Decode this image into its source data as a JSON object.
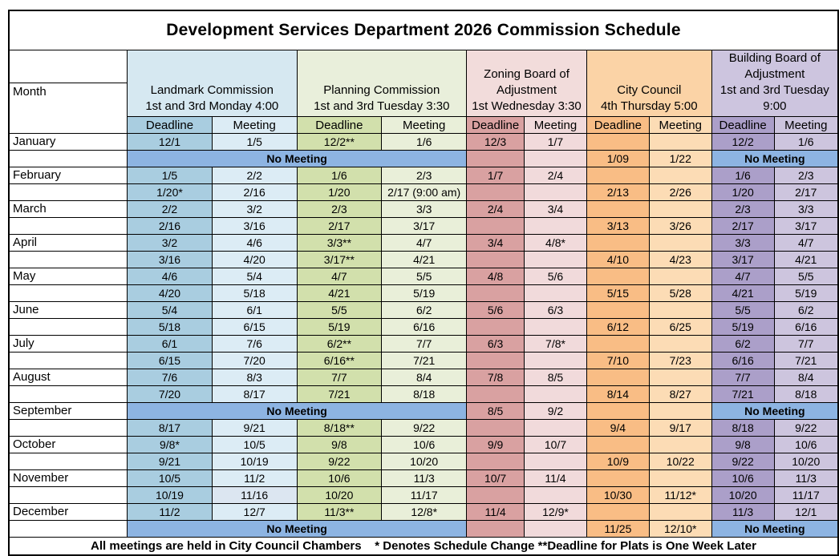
{
  "title": "Development Services Department 2026 Commission Schedule",
  "footer": "All meetings are held in City Council Chambers    * Denotes Schedule Change **Deadline for Plats is One Week Later",
  "no_meeting_label": "No Meeting",
  "columns": {
    "month_label": "Month",
    "groups": [
      {
        "name": "Landmark Commission",
        "schedule": "1st and 3rd Monday 4:00",
        "deadline_label": "Deadline",
        "meeting_label": "Meeting"
      },
      {
        "name": "Planning Commission",
        "schedule": "1st and 3rd Tuesday 3:30",
        "deadline_label": "Deadline",
        "meeting_label": "Meeting"
      },
      {
        "name": "Zoning Board of Adjustment",
        "schedule": "1st Wednesday 3:30",
        "deadline_label": "Deadline",
        "meeting_label": "Meeting"
      },
      {
        "name": "City Council",
        "schedule": "4th Thursday 5:00",
        "deadline_label": "Deadline",
        "meeting_label": "Meeting"
      },
      {
        "name": "Building Board of Adjustment",
        "schedule": "1st and 3rd Tuesday 9:00",
        "deadline_label": "Deadline",
        "meeting_label": "Meeting"
      }
    ]
  },
  "palette": {
    "lg": "#d6e8f1",
    "ld": "#a9cde0",
    "lm": "#dcecf5",
    "pg": "#e9efdb",
    "pd": "#d2e0ac",
    "pm": "#e9efd9",
    "zg": "#f2dcdb",
    "zd": "#d9a1a1",
    "zm": "#f1dadb",
    "cg": "#fbd3a6",
    "cd": "#f9bd85",
    "cm": "#fcdcb5",
    "bg": "#cdc5df",
    "bd": "#ab9fc9",
    "bm": "#cdc5de",
    "no_meeting": "#8db4e2",
    "november_highlight": "#dce6f1"
  },
  "rows": [
    {
      "month": "January",
      "cells": [
        {
          "col": "ld",
          "text": "12/1"
        },
        {
          "col": "lm",
          "text": "1/5"
        },
        {
          "col": "pd",
          "text": "12/2**"
        },
        {
          "col": "pm",
          "text": "1/6"
        },
        {
          "col": "zd",
          "text": "12/3"
        },
        {
          "col": "zm",
          "text": "1/7"
        },
        {
          "col": "cd",
          "text": ""
        },
        {
          "col": "cm",
          "text": ""
        },
        {
          "col": "bd",
          "text": "12/2"
        },
        {
          "col": "bm",
          "text": "1/6"
        }
      ]
    },
    {
      "month": "",
      "cells": [
        {
          "no_meeting": true,
          "span": 4
        },
        {
          "col": "zd",
          "text": ""
        },
        {
          "col": "zm",
          "text": ""
        },
        {
          "col": "cd",
          "text": "1/09"
        },
        {
          "col": "cm",
          "text": "1/22"
        },
        {
          "no_meeting": true,
          "span": 2
        }
      ]
    },
    {
      "month": "February",
      "cells": [
        {
          "col": "ld",
          "text": "1/5"
        },
        {
          "col": "lm",
          "text": "2/2"
        },
        {
          "col": "pd",
          "text": "1/6"
        },
        {
          "col": "pm",
          "text": "2/3"
        },
        {
          "col": "zd",
          "text": "1/7"
        },
        {
          "col": "zm",
          "text": "2/4"
        },
        {
          "col": "cd",
          "text": ""
        },
        {
          "col": "cm",
          "text": ""
        },
        {
          "col": "bd",
          "text": "1/6"
        },
        {
          "col": "bm",
          "text": "2/3"
        }
      ]
    },
    {
      "month": "",
      "cells": [
        {
          "col": "ld",
          "text": "1/20*"
        },
        {
          "col": "lm",
          "text": "2/16"
        },
        {
          "col": "pd",
          "text": "1/20"
        },
        {
          "col": "pm",
          "text": "2/17 (9:00 am)"
        },
        {
          "col": "zd",
          "text": ""
        },
        {
          "col": "zm",
          "text": ""
        },
        {
          "col": "cd",
          "text": "2/13"
        },
        {
          "col": "cm",
          "text": "2/26"
        },
        {
          "col": "bd",
          "text": "1/20"
        },
        {
          "col": "bm",
          "text": "2/17"
        }
      ]
    },
    {
      "month": "March",
      "cells": [
        {
          "col": "ld",
          "text": "2/2"
        },
        {
          "col": "lm",
          "text": "3/2"
        },
        {
          "col": "pd",
          "text": "2/3"
        },
        {
          "col": "pm",
          "text": "3/3"
        },
        {
          "col": "zd",
          "text": "2/4"
        },
        {
          "col": "zm",
          "text": "3/4"
        },
        {
          "col": "cd",
          "text": ""
        },
        {
          "col": "cm",
          "text": ""
        },
        {
          "col": "bd",
          "text": "2/3"
        },
        {
          "col": "bm",
          "text": "3/3"
        }
      ]
    },
    {
      "month": "",
      "cells": [
        {
          "col": "ld",
          "text": "2/16"
        },
        {
          "col": "lm",
          "text": "3/16"
        },
        {
          "col": "pd",
          "text": "2/17"
        },
        {
          "col": "pm",
          "text": "3/17"
        },
        {
          "col": "zd",
          "text": ""
        },
        {
          "col": "zm",
          "text": ""
        },
        {
          "col": "cd",
          "text": "3/13"
        },
        {
          "col": "cm",
          "text": "3/26"
        },
        {
          "col": "bd",
          "text": "2/17"
        },
        {
          "col": "bm",
          "text": "3/17"
        }
      ]
    },
    {
      "month": "April",
      "cells": [
        {
          "col": "ld",
          "text": "3/2"
        },
        {
          "col": "lm",
          "text": "4/6"
        },
        {
          "col": "pd",
          "text": "3/3**"
        },
        {
          "col": "pm",
          "text": "4/7"
        },
        {
          "col": "zd",
          "text": "3/4"
        },
        {
          "col": "zm",
          "text": "4/8*"
        },
        {
          "col": "cd",
          "text": ""
        },
        {
          "col": "cm",
          "text": ""
        },
        {
          "col": "bd",
          "text": "3/3"
        },
        {
          "col": "bm",
          "text": "4/7"
        }
      ]
    },
    {
      "month": "",
      "cells": [
        {
          "col": "ld",
          "text": "3/16"
        },
        {
          "col": "lm",
          "text": "4/20"
        },
        {
          "col": "pd",
          "text": "3/17**"
        },
        {
          "col": "pm",
          "text": "4/21"
        },
        {
          "col": "zd",
          "text": ""
        },
        {
          "col": "zm",
          "text": ""
        },
        {
          "col": "cd",
          "text": "4/10"
        },
        {
          "col": "cm",
          "text": "4/23"
        },
        {
          "col": "bd",
          "text": "3/17"
        },
        {
          "col": "bm",
          "text": "4/21"
        }
      ]
    },
    {
      "month": "May",
      "cells": [
        {
          "col": "ld",
          "text": "4/6"
        },
        {
          "col": "lm",
          "text": "5/4"
        },
        {
          "col": "pd",
          "text": "4/7"
        },
        {
          "col": "pm",
          "text": "5/5"
        },
        {
          "col": "zd",
          "text": "4/8"
        },
        {
          "col": "zm",
          "text": "5/6"
        },
        {
          "col": "cd",
          "text": ""
        },
        {
          "col": "cm",
          "text": ""
        },
        {
          "col": "bd",
          "text": "4/7"
        },
        {
          "col": "bm",
          "text": "5/5"
        }
      ]
    },
    {
      "month": "",
      "cells": [
        {
          "col": "ld",
          "text": "4/20"
        },
        {
          "col": "lm",
          "text": "5/18"
        },
        {
          "col": "pd",
          "text": "4/21"
        },
        {
          "col": "pm",
          "text": "5/19"
        },
        {
          "col": "zd",
          "text": ""
        },
        {
          "col": "zm",
          "text": ""
        },
        {
          "col": "cd",
          "text": "5/15"
        },
        {
          "col": "cm",
          "text": "5/28"
        },
        {
          "col": "bd",
          "text": "4/21"
        },
        {
          "col": "bm",
          "text": "5/19"
        }
      ]
    },
    {
      "month": "June",
      "cells": [
        {
          "col": "ld",
          "text": "5/4"
        },
        {
          "col": "lm",
          "text": "6/1"
        },
        {
          "col": "pd",
          "text": "5/5"
        },
        {
          "col": "pm",
          "text": "6/2"
        },
        {
          "col": "zd",
          "text": "5/6"
        },
        {
          "col": "zm",
          "text": "6/3"
        },
        {
          "col": "cd",
          "text": ""
        },
        {
          "col": "cm",
          "text": ""
        },
        {
          "col": "bd",
          "text": "5/5"
        },
        {
          "col": "bm",
          "text": "6/2"
        }
      ]
    },
    {
      "month": "",
      "cells": [
        {
          "col": "ld",
          "text": "5/18"
        },
        {
          "col": "lm",
          "text": "6/15"
        },
        {
          "col": "pd",
          "text": "5/19"
        },
        {
          "col": "pm",
          "text": "6/16"
        },
        {
          "col": "zd",
          "text": ""
        },
        {
          "col": "zm",
          "text": ""
        },
        {
          "col": "cd",
          "text": "6/12"
        },
        {
          "col": "cm",
          "text": "6/25"
        },
        {
          "col": "bd",
          "text": "5/19"
        },
        {
          "col": "bm",
          "text": "6/16"
        }
      ]
    },
    {
      "month": "July",
      "cells": [
        {
          "col": "ld",
          "text": "6/1"
        },
        {
          "col": "lm",
          "text": "7/6"
        },
        {
          "col": "pd",
          "text": "6/2**"
        },
        {
          "col": "pm",
          "text": "7/7"
        },
        {
          "col": "zd",
          "text": "6/3"
        },
        {
          "col": "zm",
          "text": "7/8*"
        },
        {
          "col": "cd",
          "text": ""
        },
        {
          "col": "cm",
          "text": ""
        },
        {
          "col": "bd",
          "text": "6/2"
        },
        {
          "col": "bm",
          "text": "7/7"
        }
      ]
    },
    {
      "month": "",
      "cells": [
        {
          "col": "ld",
          "text": "6/15"
        },
        {
          "col": "lm",
          "text": "7/20"
        },
        {
          "col": "pd",
          "text": "6/16**"
        },
        {
          "col": "pm",
          "text": "7/21"
        },
        {
          "col": "zd",
          "text": ""
        },
        {
          "col": "zm",
          "text": ""
        },
        {
          "col": "cd",
          "text": "7/10"
        },
        {
          "col": "cm",
          "text": "7/23"
        },
        {
          "col": "bd",
          "text": "6/16"
        },
        {
          "col": "bm",
          "text": "7/21"
        }
      ]
    },
    {
      "month": "August",
      "cells": [
        {
          "col": "ld",
          "text": "7/6"
        },
        {
          "col": "lm",
          "text": "8/3"
        },
        {
          "col": "pd",
          "text": "7/7"
        },
        {
          "col": "pm",
          "text": "8/4"
        },
        {
          "col": "zd",
          "text": "7/8"
        },
        {
          "col": "zm",
          "text": "8/5"
        },
        {
          "col": "cd",
          "text": ""
        },
        {
          "col": "cm",
          "text": ""
        },
        {
          "col": "bd",
          "text": "7/7"
        },
        {
          "col": "bm",
          "text": "8/4"
        }
      ]
    },
    {
      "month": "",
      "cells": [
        {
          "col": "ld",
          "text": "7/20"
        },
        {
          "col": "lm",
          "text": "8/17"
        },
        {
          "col": "pd",
          "text": "7/21"
        },
        {
          "col": "pm",
          "text": "8/18"
        },
        {
          "col": "zd",
          "text": ""
        },
        {
          "col": "zm",
          "text": ""
        },
        {
          "col": "cd",
          "text": "8/14"
        },
        {
          "col": "cm",
          "text": "8/27"
        },
        {
          "col": "bd",
          "text": "7/21"
        },
        {
          "col": "bm",
          "text": "8/18"
        }
      ]
    },
    {
      "month": "September",
      "cells": [
        {
          "no_meeting": true,
          "span": 4
        },
        {
          "col": "zd",
          "text": "8/5"
        },
        {
          "col": "zm",
          "text": "9/2"
        },
        {
          "col": "cd",
          "text": ""
        },
        {
          "col": "cm",
          "text": ""
        },
        {
          "no_meeting": true,
          "span": 2
        }
      ]
    },
    {
      "month": "",
      "cells": [
        {
          "col": "ld",
          "text": "8/17"
        },
        {
          "col": "lm",
          "text": "9/21"
        },
        {
          "col": "pd",
          "text": "8/18**"
        },
        {
          "col": "pm",
          "text": "9/22"
        },
        {
          "col": "zd",
          "text": ""
        },
        {
          "col": "zm",
          "text": ""
        },
        {
          "col": "cd",
          "text": "9/4"
        },
        {
          "col": "cm",
          "text": "9/17"
        },
        {
          "col": "bd",
          "text": "8/18"
        },
        {
          "col": "bm",
          "text": "9/22"
        }
      ]
    },
    {
      "month": "October",
      "cells": [
        {
          "col": "ld",
          "text": "9/8*"
        },
        {
          "col": "lm",
          "text": "10/5"
        },
        {
          "col": "pd",
          "text": "9/8"
        },
        {
          "col": "pm",
          "text": "10/6"
        },
        {
          "col": "zd",
          "text": "9/9"
        },
        {
          "col": "zm",
          "text": "10/7"
        },
        {
          "col": "cd",
          "text": ""
        },
        {
          "col": "cm",
          "text": ""
        },
        {
          "col": "bd",
          "text": "9/8"
        },
        {
          "col": "bm",
          "text": "10/6"
        }
      ]
    },
    {
      "month": "",
      "cells": [
        {
          "col": "ld",
          "text": "9/21"
        },
        {
          "col": "lm",
          "text": "10/19"
        },
        {
          "col": "pd",
          "text": "9/22"
        },
        {
          "col": "pm",
          "text": "10/20"
        },
        {
          "col": "zd",
          "text": ""
        },
        {
          "col": "zm",
          "text": ""
        },
        {
          "col": "cd",
          "text": "10/9"
        },
        {
          "col": "cm",
          "text": "10/22"
        },
        {
          "col": "bd",
          "text": "9/22"
        },
        {
          "col": "bm",
          "text": "10/20"
        }
      ]
    },
    {
      "month": "November",
      "cells": [
        {
          "col": "ld",
          "text": "10/5"
        },
        {
          "col": "lm",
          "text": "11/2"
        },
        {
          "col": "pd",
          "text": "10/6"
        },
        {
          "col": "pm",
          "text": "11/3"
        },
        {
          "col": "zd",
          "text": "10/7"
        },
        {
          "col": "zm",
          "text": "11/4"
        },
        {
          "col": "cd",
          "text": ""
        },
        {
          "col": "cm",
          "text": ""
        },
        {
          "col": "bd",
          "text": "10/6"
        },
        {
          "col": "bm",
          "text": "11/3"
        }
      ]
    },
    {
      "month": "",
      "cells": [
        {
          "col": "ld",
          "text": "10/19"
        },
        {
          "col": "lm",
          "text": "11/16",
          "bg": "#dce6f1"
        },
        {
          "col": "pd",
          "text": "10/20"
        },
        {
          "col": "pm",
          "text": "11/17"
        },
        {
          "col": "zd",
          "text": ""
        },
        {
          "col": "zm",
          "text": ""
        },
        {
          "col": "cd",
          "text": "10/30"
        },
        {
          "col": "cm",
          "text": "11/12*"
        },
        {
          "col": "bd",
          "text": "10/20"
        },
        {
          "col": "bm",
          "text": "11/17"
        }
      ]
    },
    {
      "month": "December",
      "cells": [
        {
          "col": "ld",
          "text": "11/2"
        },
        {
          "col": "lm",
          "text": "12/7"
        },
        {
          "col": "pd",
          "text": "11/3**"
        },
        {
          "col": "pm",
          "text": "12/8*"
        },
        {
          "col": "zd",
          "text": "11/4"
        },
        {
          "col": "zm",
          "text": "12/9*"
        },
        {
          "col": "cd",
          "text": ""
        },
        {
          "col": "cm",
          "text": ""
        },
        {
          "col": "bd",
          "text": "11/3"
        },
        {
          "col": "bm",
          "text": "12/1"
        }
      ]
    },
    {
      "month": "",
      "cells": [
        {
          "no_meeting": true,
          "span": 4
        },
        {
          "col": "zd",
          "text": ""
        },
        {
          "col": "zm",
          "text": ""
        },
        {
          "col": "cd",
          "text": "11/25"
        },
        {
          "col": "cm",
          "text": "12/10*"
        },
        {
          "no_meeting": true,
          "span": 2
        }
      ]
    }
  ]
}
